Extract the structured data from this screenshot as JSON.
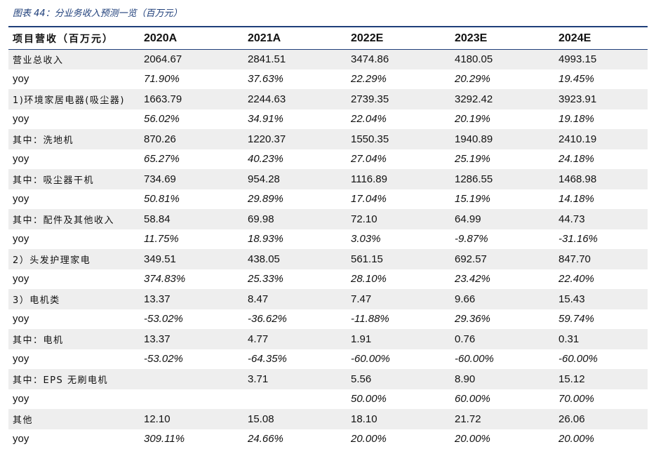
{
  "caption": "图表 44：分业务收入预测一览（百万元）",
  "header": [
    "项目营收（百万元）",
    "2020A",
    "2021A",
    "2022E",
    "2023E",
    "2024E"
  ],
  "rows": [
    {
      "label": "营业总收入",
      "values": [
        "2064.67",
        "2841.51",
        "3474.86",
        "4180.05",
        "4993.15"
      ]
    },
    {
      "label": "yoy",
      "values": [
        "71.90%",
        "37.63%",
        "22.29%",
        "20.29%",
        "19.45%"
      ]
    },
    {
      "label": "1)环境家居电器(吸尘器)",
      "values": [
        "1663.79",
        "2244.63",
        "2739.35",
        "3292.42",
        "3923.91"
      ]
    },
    {
      "label": "yoy",
      "values": [
        "56.02%",
        "34.91%",
        "22.04%",
        "20.19%",
        "19.18%"
      ]
    },
    {
      "label": "其中：洗地机",
      "values": [
        "870.26",
        "1220.37",
        "1550.35",
        "1940.89",
        "2410.19"
      ]
    },
    {
      "label": "yoy",
      "values": [
        "65.27%",
        "40.23%",
        "27.04%",
        "25.19%",
        "24.18%"
      ]
    },
    {
      "label": "其中：吸尘器干机",
      "values": [
        "734.69",
        "954.28",
        "1116.89",
        "1286.55",
        "1468.98"
      ]
    },
    {
      "label": "yoy",
      "values": [
        "50.81%",
        "29.89%",
        "17.04%",
        "15.19%",
        "14.18%"
      ]
    },
    {
      "label": "其中：配件及其他收入",
      "values": [
        "58.84",
        "69.98",
        "72.10",
        "64.99",
        "44.73"
      ]
    },
    {
      "label": "yoy",
      "values": [
        "11.75%",
        "18.93%",
        "3.03%",
        "-9.87%",
        "-31.16%"
      ]
    },
    {
      "label": "2）头发护理家电",
      "values": [
        "349.51",
        "438.05",
        "561.15",
        "692.57",
        "847.70"
      ]
    },
    {
      "label": "yoy",
      "values": [
        "374.83%",
        "25.33%",
        "28.10%",
        "23.42%",
        "22.40%"
      ]
    },
    {
      "label": "3）电机类",
      "values": [
        "13.37",
        "8.47",
        "7.47",
        "9.66",
        "15.43"
      ]
    },
    {
      "label": "yoy",
      "values": [
        "-53.02%",
        "-36.62%",
        "-11.88%",
        "29.36%",
        "59.74%"
      ]
    },
    {
      "label": "其中：电机",
      "values": [
        "13.37",
        "4.77",
        "1.91",
        "0.76",
        "0.31"
      ]
    },
    {
      "label": "yoy",
      "values": [
        "-53.02%",
        "-64.35%",
        "-60.00%",
        "-60.00%",
        "-60.00%"
      ]
    },
    {
      "label": "其中：EPS 无刷电机",
      "values": [
        "",
        "3.71",
        "5.56",
        "8.90",
        "15.12"
      ]
    },
    {
      "label": "yoy",
      "values": [
        "",
        "",
        "50.00%",
        "60.00%",
        "70.00%"
      ]
    },
    {
      "label": "其他",
      "values": [
        "12.10",
        "15.08",
        "18.10",
        "21.72",
        "26.06"
      ]
    },
    {
      "label": "yoy",
      "values": [
        "309.11%",
        "24.66%",
        "20.00%",
        "20.00%",
        "20.00%"
      ]
    }
  ]
}
